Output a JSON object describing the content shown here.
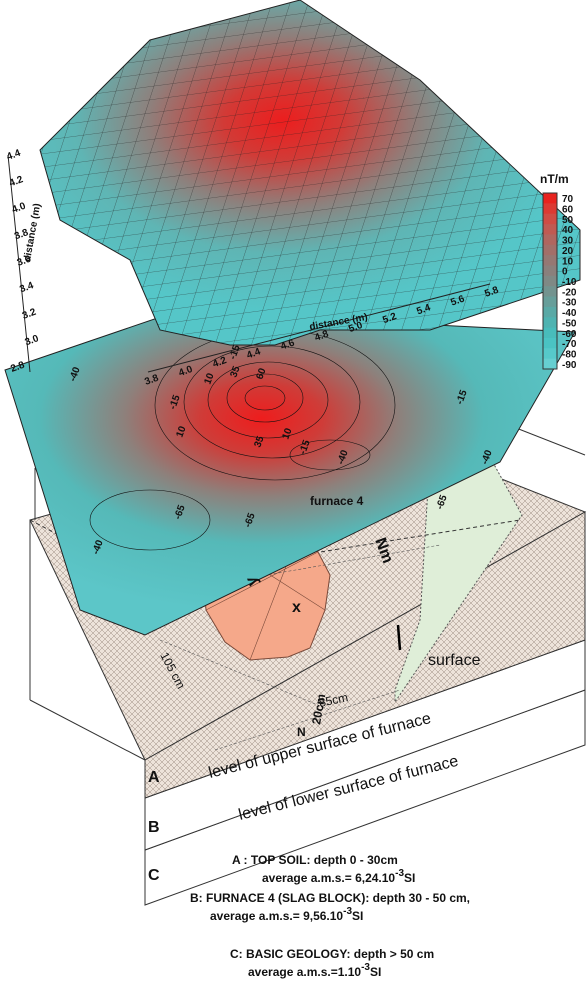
{
  "surface_plot": {
    "y_axis_label": "distance (m)",
    "y_ticks": [
      "4.4",
      "4.2",
      "4.0",
      "3.8",
      "3.6",
      "3.4",
      "3.2",
      "3.0",
      "2.8"
    ],
    "x_axis_label": "distance (m)",
    "x_ticks": [
      "3.8",
      "4.0",
      "4.2",
      "4.4",
      "4.6",
      "4.8",
      "5.0",
      "5.2",
      "5.4",
      "5.6",
      "5.8"
    ]
  },
  "colorbar": {
    "unit": "nT/m",
    "labels": [
      "70",
      "60",
      "50",
      "40",
      "30",
      "20",
      "10",
      "0",
      "-10",
      "-20",
      "-30",
      "-40",
      "-50",
      "-60",
      "-70",
      "-80",
      "-90"
    ],
    "colors": [
      "#e8241f",
      "#dc3a33",
      "#cf4c44",
      "#c05a52",
      "#b0665f",
      "#a26f69",
      "#957873",
      "#8a807c",
      "#7f8985",
      "#73938f",
      "#679e9a",
      "#5aa9a6",
      "#4fb3b1",
      "#48bcbb",
      "#4ac3c3",
      "#56c9ca",
      "#66cfd1"
    ]
  },
  "contour_labels": [
    "-15",
    "10",
    "35",
    "60",
    "-40",
    "-15",
    "10",
    "35",
    "10",
    "-15",
    "-40",
    "-15",
    "-40",
    "-65",
    "-65",
    "-65",
    "-40"
  ],
  "diagram": {
    "furnace_label": "furnace 4",
    "north": "Nm",
    "surface_label": "surface",
    "dim_105": "105 cm",
    "dim_85": "85cm",
    "dim_20": "20cm",
    "n_mark": "N",
    "x_mark": "x",
    "y_mark": "y",
    "upper_level": "level of upper surface of furnace",
    "lower_level": "level of lower surface of furnace",
    "layer_a": "A",
    "layer_b": "B",
    "layer_c": "C"
  },
  "legend": {
    "a_title": "A : TOP SOIL: depth 0 - 30cm",
    "a_line": {
      "text": "average  a.m.s.= 6,24.10",
      "exp": "-3",
      "unit": "SI"
    },
    "b_title": "B: FURNACE 4 (SLAG BLOCK): depth 30 - 50 cm,",
    "b_line": {
      "text": "average a.m.s.= 9,56.10",
      "exp": "-3",
      "unit": "SI"
    },
    "c_title": "C: BASIC GEOLOGY: depth > 50 cm",
    "c_line": {
      "text": "average a.m.s.=1.10",
      "exp": "-3",
      "unit": "SI"
    }
  }
}
